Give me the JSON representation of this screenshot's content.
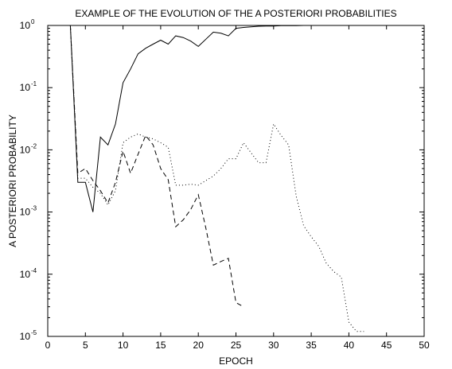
{
  "chart_data": {
    "type": "line",
    "title": "EXAMPLE OF THE EVOLUTION OF THE A POSTERIORI PROBABILITIES",
    "xlabel": "EPOCH",
    "ylabel": "A POSTERIORI PROBABILITY",
    "xlim": [
      0,
      50
    ],
    "ylim": [
      1e-05,
      1
    ],
    "yscale": "log",
    "grid": false,
    "x_ticks": [
      0,
      5,
      10,
      15,
      20,
      25,
      30,
      35,
      40,
      45,
      50
    ],
    "y_ticks": [
      {
        "base": "10",
        "exp": "-5",
        "value": 1e-05
      },
      {
        "base": "10",
        "exp": "-4",
        "value": 0.0001
      },
      {
        "base": "10",
        "exp": "-3",
        "value": 0.001
      },
      {
        "base": "10",
        "exp": "-2",
        "value": 0.01
      },
      {
        "base": "10",
        "exp": "-1",
        "value": 0.1
      },
      {
        "base": "10",
        "exp": "0",
        "value": 1
      }
    ],
    "series": [
      {
        "style": "solid",
        "x": [
          3,
          4,
          5,
          6,
          7,
          8,
          9,
          10,
          11,
          12,
          13,
          14,
          15,
          16,
          17,
          18,
          19,
          20,
          21,
          22,
          23,
          24,
          25,
          26,
          27,
          28,
          29,
          30,
          31,
          32,
          33,
          34,
          35,
          36,
          37,
          38,
          39,
          40,
          41,
          42,
          43,
          44,
          45,
          46,
          47,
          48,
          49,
          50
        ],
        "y": [
          1,
          0.003,
          0.003,
          0.001,
          0.016,
          0.012,
          0.026,
          0.12,
          0.2,
          0.35,
          0.43,
          0.5,
          0.58,
          0.5,
          0.68,
          0.64,
          0.56,
          0.46,
          0.6,
          0.78,
          0.75,
          0.68,
          0.9,
          0.93,
          0.95,
          0.97,
          0.98,
          0.98,
          0.99,
          0.99,
          0.99,
          1,
          1,
          1,
          1,
          1,
          1,
          1,
          1,
          1,
          1,
          1,
          1,
          1,
          1,
          1,
          1,
          1
        ]
      },
      {
        "style": "dashed",
        "x": [
          3,
          4,
          5,
          6,
          7,
          8,
          9,
          10,
          11,
          12,
          13,
          14,
          15,
          16,
          17,
          18,
          19,
          20,
          21,
          22,
          23,
          24,
          25,
          26
        ],
        "y": [
          1,
          0.0042,
          0.005,
          0.0032,
          0.0022,
          0.0014,
          0.003,
          0.0095,
          0.0042,
          0.0085,
          0.017,
          0.012,
          0.005,
          0.0033,
          0.00058,
          0.00075,
          0.0011,
          0.0019,
          0.00055,
          0.00014,
          0.00016,
          0.00018,
          3.5e-05,
          3e-05
        ]
      },
      {
        "style": "dotted",
        "x": [
          3,
          4,
          5,
          6,
          7,
          8,
          9,
          10,
          11,
          12,
          13,
          14,
          15,
          16,
          17,
          18,
          19,
          20,
          21,
          22,
          23,
          24,
          25,
          26,
          27,
          28,
          29,
          30,
          31,
          32,
          33,
          34,
          35,
          36,
          37,
          38,
          39,
          40,
          41,
          42
        ],
        "y": [
          1,
          0.0035,
          0.0035,
          0.0025,
          0.002,
          0.0013,
          0.0022,
          0.013,
          0.016,
          0.018,
          0.016,
          0.015,
          0.013,
          0.011,
          0.0027,
          0.0027,
          0.0028,
          0.0027,
          0.0032,
          0.0038,
          0.005,
          0.0072,
          0.0072,
          0.013,
          0.009,
          0.0062,
          0.0062,
          0.026,
          0.017,
          0.012,
          0.0018,
          0.0006,
          0.0004,
          0.00028,
          0.00015,
          0.00011,
          9e-05,
          1.7e-05,
          1.2e-05,
          1.2e-05
        ]
      }
    ]
  }
}
